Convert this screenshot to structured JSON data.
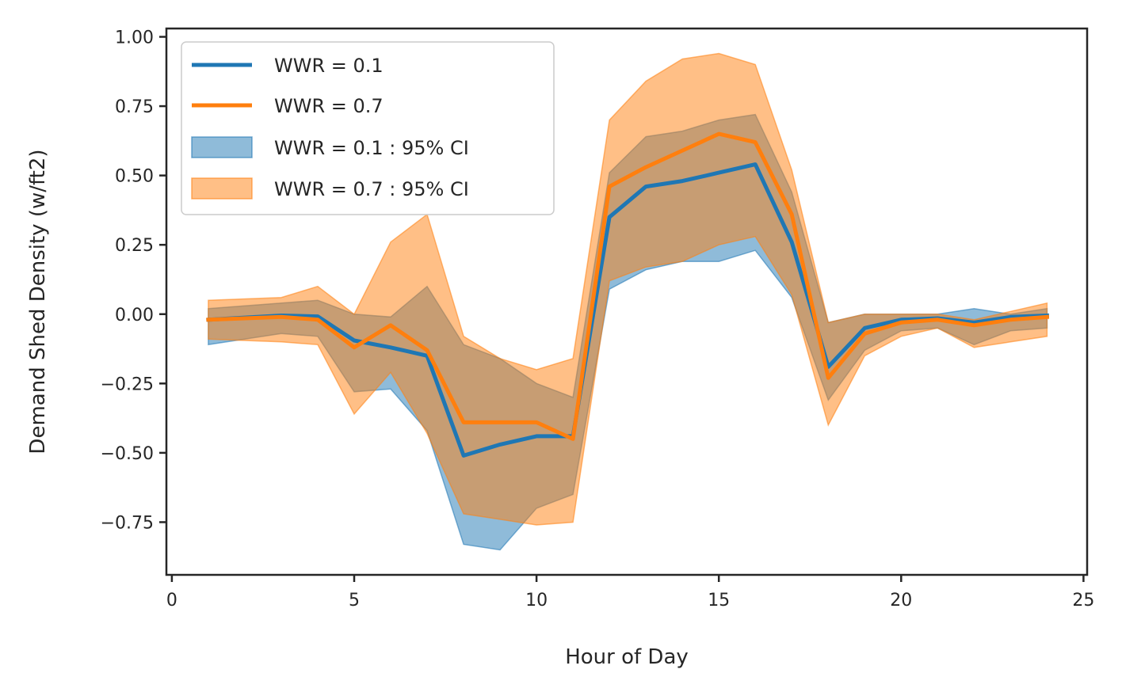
{
  "chart_data": {
    "type": "line",
    "xlabel": "Hour of Day",
    "ylabel": "Demand Shed Density (w/ft2)",
    "xlim": [
      -0.15,
      25.1
    ],
    "ylim": [
      -0.94,
      1.03
    ],
    "xticks": [
      0,
      5,
      10,
      15,
      20,
      25
    ],
    "yticks": [
      -0.75,
      -0.5,
      -0.25,
      0.0,
      0.25,
      0.5,
      0.75,
      1.0
    ],
    "ytick_labels": [
      "−0.75",
      "−0.50",
      "−0.25",
      "0.00",
      "0.25",
      "0.50",
      "0.75",
      "1.00"
    ],
    "xtick_labels": [
      "0",
      "5",
      "10",
      "15",
      "20",
      "25"
    ],
    "grid": false,
    "legend_position": "upper-left",
    "x": [
      1,
      3,
      4,
      5,
      6,
      7,
      8,
      9,
      10,
      11,
      12,
      13,
      14,
      15,
      16,
      17,
      18,
      19,
      20,
      21,
      22,
      23,
      24
    ],
    "series": [
      {
        "name": "WWR = 0.1",
        "color": "#1f77b4",
        "values": [
          -0.02,
          -0.005,
          -0.008,
          -0.095,
          -0.12,
          -0.15,
          -0.51,
          -0.47,
          -0.44,
          -0.44,
          0.35,
          0.46,
          0.48,
          0.51,
          0.54,
          0.26,
          -0.19,
          -0.05,
          -0.02,
          -0.015,
          -0.03,
          -0.01,
          -0.005
        ]
      },
      {
        "name": "WWR = 0.7",
        "color": "#ff7f0e",
        "values": [
          -0.02,
          -0.01,
          -0.02,
          -0.12,
          -0.04,
          -0.13,
          -0.39,
          -0.39,
          -0.39,
          -0.45,
          0.46,
          0.53,
          0.59,
          0.65,
          0.62,
          0.36,
          -0.23,
          -0.07,
          -0.03,
          -0.02,
          -0.04,
          -0.02,
          -0.01
        ]
      }
    ],
    "bands": [
      {
        "name": "WWR = 0.1 : 95% CI",
        "color": "#1f77b4",
        "lower": [
          -0.11,
          -0.07,
          -0.08,
          -0.28,
          -0.27,
          -0.42,
          -0.83,
          -0.85,
          -0.7,
          -0.65,
          0.09,
          0.16,
          0.19,
          0.19,
          0.23,
          0.06,
          -0.31,
          -0.13,
          -0.06,
          -0.05,
          -0.11,
          -0.06,
          -0.05
        ],
        "upper": [
          0.02,
          0.04,
          0.05,
          0.0,
          -0.01,
          0.1,
          -0.11,
          -0.16,
          -0.25,
          -0.3,
          0.51,
          0.64,
          0.66,
          0.7,
          0.72,
          0.44,
          -0.03,
          0.0,
          0.0,
          0.0,
          0.02,
          0.0,
          0.02
        ]
      },
      {
        "name": "WWR = 0.7 : 95% CI",
        "color": "#ff7f0e",
        "lower": [
          -0.09,
          -0.1,
          -0.11,
          -0.36,
          -0.21,
          -0.43,
          -0.72,
          -0.74,
          -0.76,
          -0.75,
          0.12,
          0.17,
          0.19,
          0.25,
          0.28,
          0.07,
          -0.4,
          -0.15,
          -0.08,
          -0.05,
          -0.12,
          -0.1,
          -0.08
        ],
        "upper": [
          0.05,
          0.06,
          0.1,
          0.0,
          0.26,
          0.36,
          -0.08,
          -0.16,
          -0.2,
          -0.16,
          0.7,
          0.84,
          0.92,
          0.94,
          0.9,
          0.52,
          -0.03,
          0.0,
          0.0,
          0.0,
          -0.02,
          0.01,
          0.04
        ]
      }
    ]
  }
}
